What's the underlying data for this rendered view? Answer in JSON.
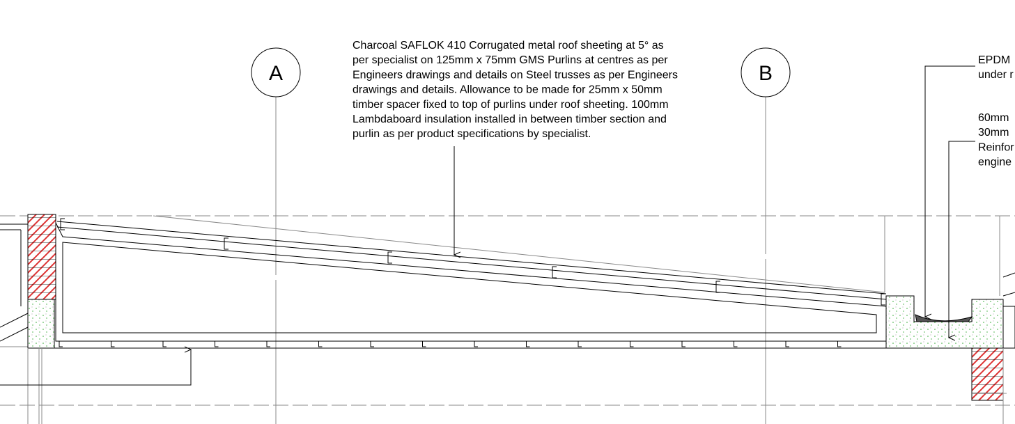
{
  "grid_markers": [
    {
      "label": "A"
    },
    {
      "label": "B"
    }
  ],
  "main_note": {
    "lines": [
      "Charcoal SAFLOK 410 Corrugated metal roof sheeting at 5° as",
      "per specialist on 125mm x 75mm GMS Purlins at centres as per",
      "Engineers drawings and details on Steel trusses as per Engineers",
      "drawings and details.  Allowance to be made for 25mm x 50mm",
      "timber spacer fixed to top of purlins under roof sheeting. 100mm",
      "Lambdaboard insulation installed in between timber section and",
      "purlin as per product specifications by specialist."
    ]
  },
  "right_notes": [
    {
      "lines": [
        "EPDM",
        "under r"
      ]
    },
    {
      "lines": [
        "60mm",
        "30mm",
        "Reinfor",
        "engine"
      ]
    }
  ]
}
